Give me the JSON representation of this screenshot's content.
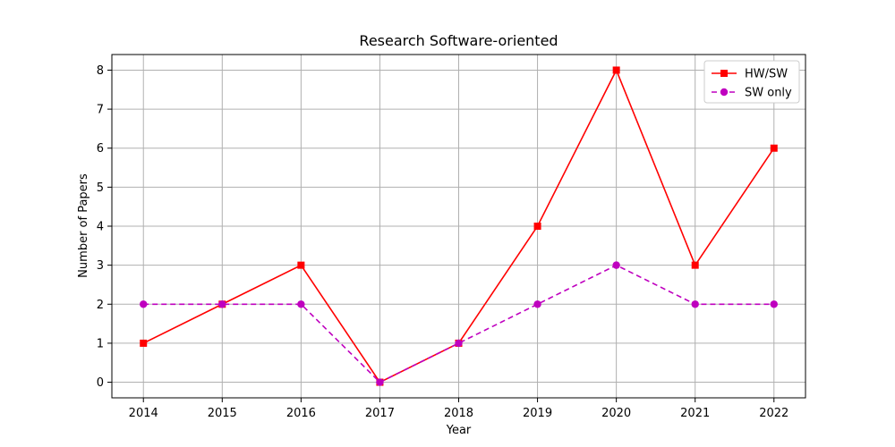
{
  "chart_data": {
    "type": "line",
    "title": "Research Software-oriented",
    "xlabel": "Year",
    "ylabel": "Number of Papers",
    "categories": [
      "2014",
      "2015",
      "2016",
      "2017",
      "2018",
      "2019",
      "2020",
      "2021",
      "2022"
    ],
    "x_ticks": [
      "2014",
      "2015",
      "2016",
      "2017",
      "2018",
      "2019",
      "2020",
      "2021",
      "2022"
    ],
    "y_ticks": [
      "0",
      "1",
      "2",
      "3",
      "4",
      "5",
      "6",
      "7",
      "8"
    ],
    "xlim": [
      2013.6,
      2022.4
    ],
    "ylim": [
      -0.4,
      8.4
    ],
    "grid": true,
    "legend_position": "top-right",
    "series": [
      {
        "name": "HW/SW",
        "color": "#ff0000",
        "marker": "square",
        "line_style": "solid",
        "values": [
          1,
          2,
          3,
          0,
          1,
          4,
          8,
          3,
          6
        ]
      },
      {
        "name": "SW only",
        "color": "#bf00bf",
        "marker": "circle",
        "line_style": "dashed",
        "values": [
          2,
          2,
          2,
          0,
          1,
          2,
          3,
          2,
          2
        ]
      }
    ]
  }
}
